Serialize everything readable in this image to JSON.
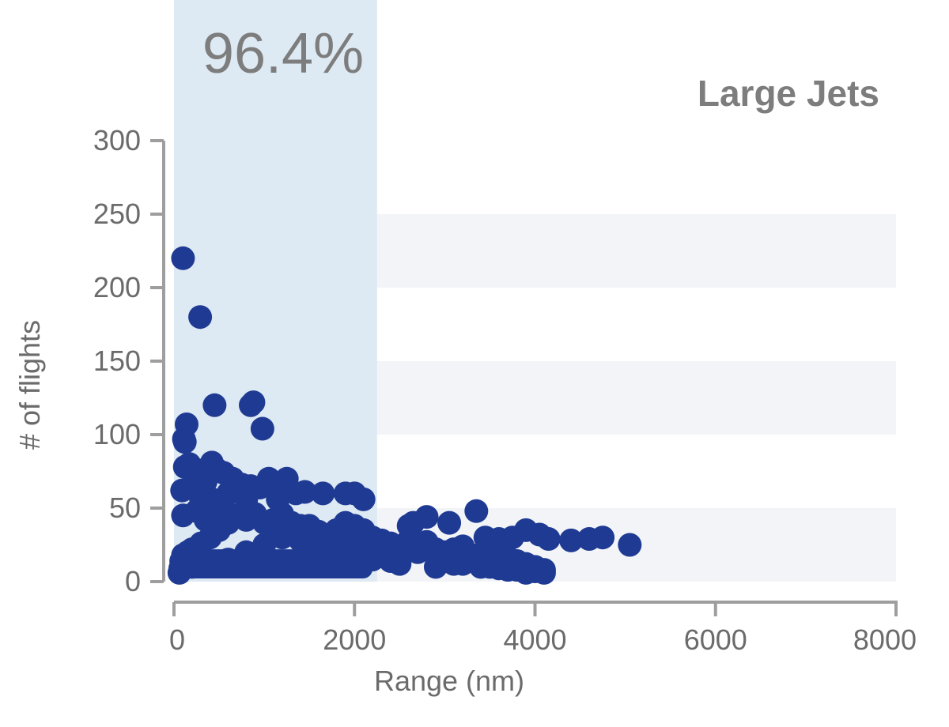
{
  "chart_data": {
    "type": "scatter",
    "title": "Large Jets",
    "xlabel": "Range (nm)",
    "ylabel": "# of flights",
    "xlim": [
      0,
      8000
    ],
    "ylim": [
      0,
      300
    ],
    "xticks": [
      "0",
      "2000",
      "4000",
      "6000",
      "8000"
    ],
    "yticks": [
      "0",
      "50",
      "100",
      "150",
      "200",
      "250",
      "300"
    ],
    "grid": "alternating horizontal bands",
    "highlight": {
      "label": "96.4%",
      "x_from": 0,
      "x_to": 2250
    },
    "colors": {
      "points": "#1f3a93",
      "highlight_band": "#dde9f3",
      "grid_band": "#f2f4f7",
      "axis": "#9e9e9e"
    },
    "series": [
      {
        "x": [
          100,
          290,
          450,
          850,
          880,
          980,
          140,
          110,
          120,
          420,
          480,
          220,
          240,
          300,
          420,
          600,
          800,
          1150,
          1170,
          1130,
          280,
          90,
          120,
          170,
          250,
          350,
          450,
          550,
          650,
          750,
          850,
          950,
          1050,
          1150,
          1250,
          1350,
          1450,
          1650,
          1900,
          2000,
          2100,
          2600,
          2650,
          2800,
          3050,
          3350,
          3450,
          3600,
          3750,
          3900,
          4050,
          4150,
          4400,
          4600,
          4750,
          5050,
          60,
          70,
          80,
          100,
          150,
          200,
          300,
          400,
          500,
          600,
          700,
          800,
          900,
          1000,
          1100,
          1200,
          1300,
          1400,
          1500,
          1600,
          1700,
          1800,
          1900,
          2000,
          2100,
          2200,
          2300,
          2400,
          2500,
          2600,
          2700,
          2800,
          2900,
          3000,
          3100,
          3200,
          3300,
          3400,
          3500,
          3600,
          3700,
          3800,
          3900,
          4000,
          4100,
          200,
          400,
          600,
          800,
          1000,
          1200,
          1400,
          1600,
          1800,
          2200,
          2400,
          2500,
          2900,
          3100,
          3300,
          3500,
          3700,
          3900,
          4100,
          100,
          250,
          350,
          550,
          700,
          900,
          1100,
          1300,
          1500,
          1700,
          1900,
          2100,
          2300,
          2700,
          3000,
          3200,
          3400,
          3600,
          3800,
          4000
        ],
        "y": [
          220,
          180,
          120,
          120,
          122,
          104,
          107,
          97,
          95,
          81,
          76,
          67,
          66,
          56,
          56,
          60,
          56,
          56,
          61,
          65,
          63,
          62,
          78,
          80,
          76,
          68,
          76,
          74,
          70,
          66,
          65,
          64,
          70,
          66,
          70,
          60,
          61,
          60,
          60,
          60,
          56,
          38,
          40,
          44,
          40,
          48,
          30,
          29,
          30,
          35,
          32,
          29,
          28,
          29,
          30,
          25,
          6,
          9,
          14,
          18,
          20,
          22,
          26,
          30,
          35,
          40,
          45,
          42,
          44,
          40,
          38,
          46,
          40,
          38,
          35,
          34,
          30,
          35,
          40,
          38,
          35,
          30,
          28,
          26,
          24,
          28,
          25,
          27,
          22,
          20,
          22,
          24,
          18,
          16,
          20,
          20,
          16,
          14,
          12,
          10,
          8,
          10,
          12,
          15,
          20,
          25,
          30,
          28,
          22,
          18,
          15,
          14,
          12,
          10,
          12,
          14,
          10,
          8,
          6,
          6,
          45,
          48,
          42,
          50,
          44,
          46,
          42,
          40,
          38,
          30,
          28,
          22,
          18,
          20,
          14,
          12,
          10,
          9,
          8,
          7
        ]
      }
    ]
  }
}
